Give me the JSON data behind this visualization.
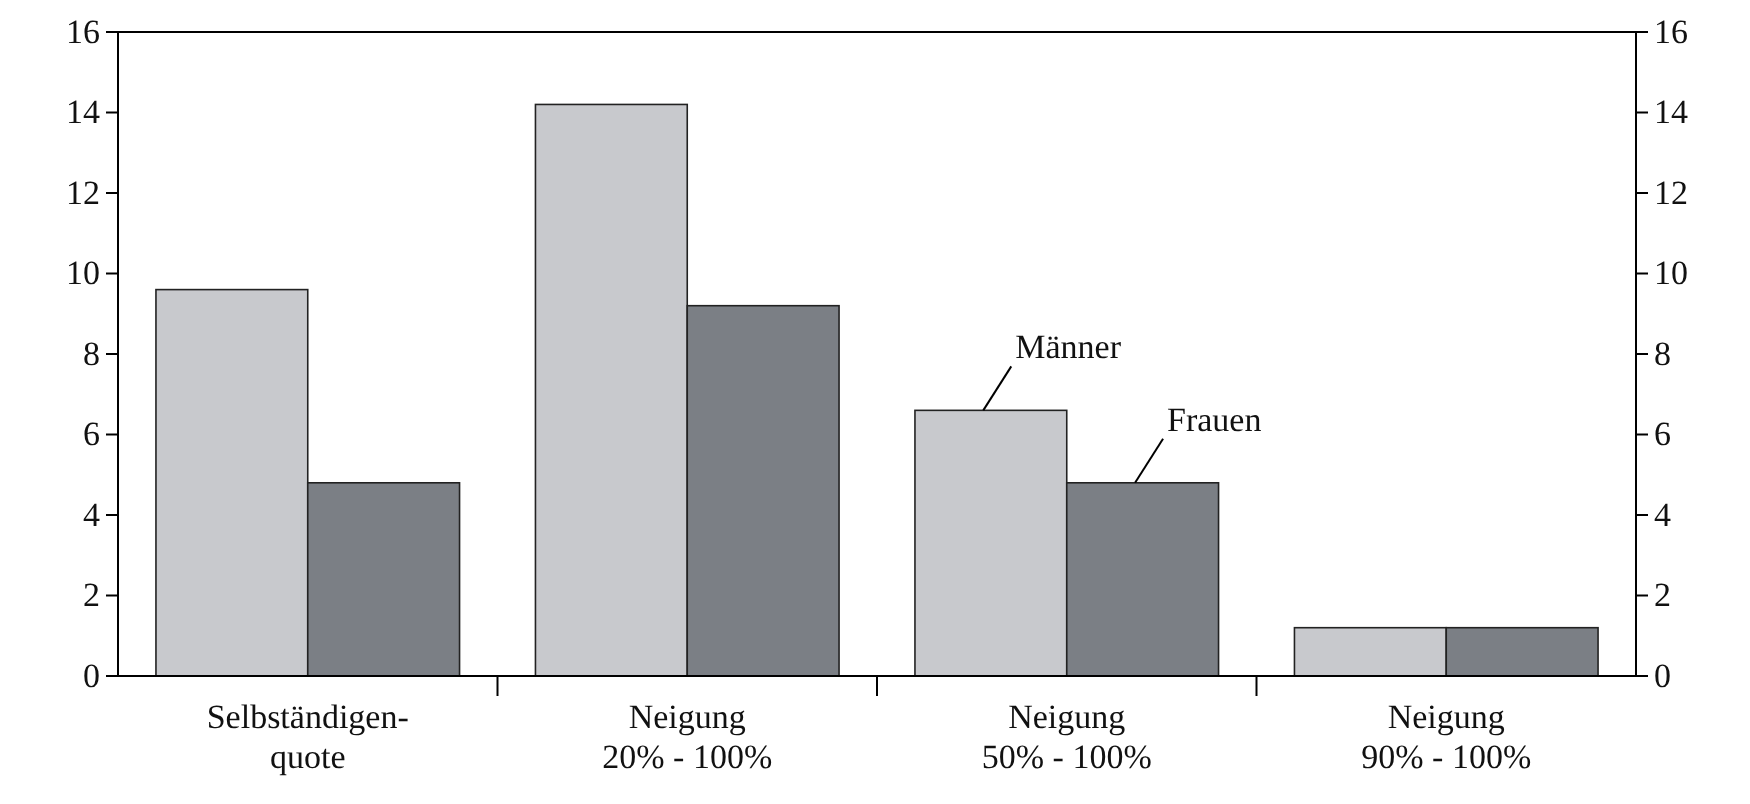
{
  "chart_data": {
    "type": "bar",
    "categories": [
      "Selbständigen-\nquote",
      "Neigung\n20% - 100%",
      "Neigung\n50% - 100%",
      "Neigung\n90% - 100%"
    ],
    "series": [
      {
        "name": "Männer",
        "color": "#c8c9cd",
        "values": [
          9.6,
          14.2,
          6.6,
          1.2
        ]
      },
      {
        "name": "Frauen",
        "color": "#7b7f85",
        "values": [
          4.8,
          9.2,
          4.8,
          1.2
        ]
      }
    ],
    "ylim": [
      0,
      16
    ],
    "yticks": [
      0,
      2,
      4,
      6,
      8,
      10,
      12,
      14,
      16
    ],
    "y2lim": [
      0,
      16
    ],
    "y2ticks": [
      0,
      2,
      4,
      6,
      8,
      10,
      12,
      14,
      16
    ],
    "grid": false
  }
}
